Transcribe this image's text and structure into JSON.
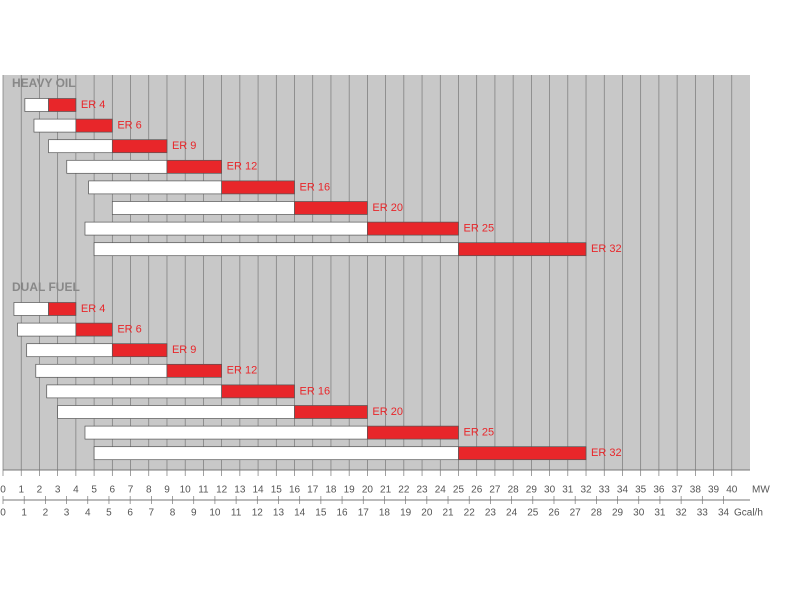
{
  "chart_data": {
    "type": "range-bar",
    "groups": [
      {
        "name": "HEAVY OIL",
        "rows": [
          {
            "label": "ER 4",
            "min": 1.2,
            "mid": 2.5,
            "max": 4
          },
          {
            "label": "ER 6",
            "min": 1.7,
            "mid": 4,
            "max": 6
          },
          {
            "label": "ER 9",
            "min": 2.5,
            "mid": 6,
            "max": 9
          },
          {
            "label": "ER 12",
            "min": 3.5,
            "mid": 9,
            "max": 12
          },
          {
            "label": "ER 16",
            "min": 4.7,
            "mid": 12,
            "max": 16
          },
          {
            "label": "ER 20",
            "min": 6,
            "mid": 16,
            "max": 20
          },
          {
            "label": "ER 25",
            "min": 4.5,
            "mid": 20,
            "max": 25
          },
          {
            "label": "ER 32",
            "min": 5,
            "mid": 25,
            "max": 32
          }
        ]
      },
      {
        "name": "DUAL FUEL",
        "rows": [
          {
            "label": "ER 4",
            "min": 0.6,
            "mid": 2.5,
            "max": 4
          },
          {
            "label": "ER 6",
            "min": 0.8,
            "mid": 4,
            "max": 6
          },
          {
            "label": "ER 9",
            "min": 1.3,
            "mid": 6,
            "max": 9
          },
          {
            "label": "ER 12",
            "min": 1.8,
            "mid": 9,
            "max": 12
          },
          {
            "label": "ER 16",
            "min": 2.4,
            "mid": 12,
            "max": 16
          },
          {
            "label": "ER 20",
            "min": 3,
            "mid": 16,
            "max": 20
          },
          {
            "label": "ER 25",
            "min": 4.5,
            "mid": 20,
            "max": 25
          },
          {
            "label": "ER 32",
            "min": 5,
            "mid": 25,
            "max": 32
          }
        ]
      }
    ],
    "low_color": "#ffffff",
    "high_color": "#e8262a",
    "label_color": "#e8262a",
    "xlim": [
      0,
      41
    ],
    "xticks": [
      0,
      1,
      2,
      3,
      4,
      5,
      6,
      7,
      8,
      9,
      10,
      11,
      12,
      13,
      14,
      15,
      16,
      17,
      18,
      19,
      20,
      21,
      22,
      23,
      24,
      25,
      26,
      27,
      28,
      29,
      30,
      31,
      32,
      33,
      34,
      35,
      36,
      37,
      38,
      39,
      40
    ],
    "x_unit": "MW",
    "x2lim": [
      0,
      35.25
    ],
    "x2ticks": [
      0,
      1,
      2,
      3,
      4,
      5,
      6,
      7,
      8,
      9,
      10,
      11,
      12,
      13,
      14,
      15,
      16,
      17,
      18,
      19,
      20,
      21,
      22,
      23,
      24,
      25,
      26,
      27,
      28,
      29,
      30,
      31,
      32,
      33,
      34
    ],
    "x2_unit": "Gcal/h",
    "grid": true
  }
}
